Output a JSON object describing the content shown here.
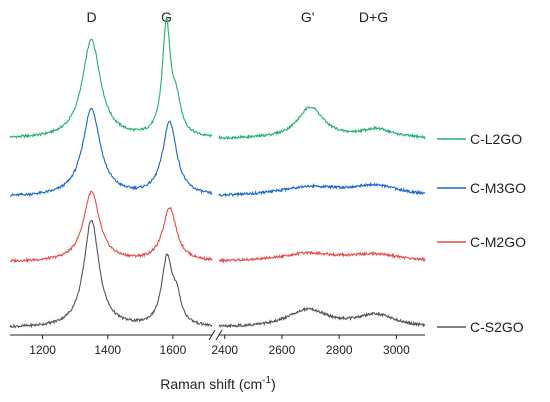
{
  "chart_data": {
    "type": "line",
    "xlabel": "Raman shift (cm",
    "xlabel_superscript": "-1",
    "xlabel_suffix": ")",
    "ylabel": "",
    "axis_break": [
      1720,
      2380
    ],
    "xlim_left": [
      1100,
      1720
    ],
    "xlim_right": [
      2380,
      3100
    ],
    "x_ticks": [
      {
        "value": 1200,
        "label": "1200"
      },
      {
        "value": 1400,
        "label": "1400"
      },
      {
        "value": 1600,
        "label": "1600"
      },
      {
        "value": 2400,
        "label": "2400"
      },
      {
        "value": 2600,
        "label": "2600"
      },
      {
        "value": 2800,
        "label": "2800"
      },
      {
        "value": 3000,
        "label": "3000"
      }
    ],
    "peak_labels": [
      {
        "label": "D",
        "x": 1350
      },
      {
        "label": "G",
        "x": 1580
      },
      {
        "label": "G'",
        "x": 2690
      },
      {
        "label": "D+G",
        "x": 2920
      }
    ],
    "legend_position": "right",
    "grid": false,
    "series": [
      {
        "name": "C-L2GO",
        "color": "#1fb371",
        "baseline": 0.0,
        "peaks": [
          {
            "center": 1350,
            "width": 34,
            "height": 0.88
          },
          {
            "center": 1580,
            "width": 15,
            "height": 0.98
          },
          {
            "center": 1610,
            "width": 18,
            "height": 0.28
          },
          {
            "center": 2700,
            "width": 55,
            "height": 0.28
          },
          {
            "center": 2930,
            "width": 70,
            "height": 0.08
          }
        ]
      },
      {
        "name": "C-M3GO",
        "color": "#1668c9",
        "baseline": 0.0,
        "peaks": [
          {
            "center": 1350,
            "width": 33,
            "height": 0.78
          },
          {
            "center": 1590,
            "width": 26,
            "height": 0.66
          },
          {
            "center": 2690,
            "width": 130,
            "height": 0.08
          },
          {
            "center": 2925,
            "width": 110,
            "height": 0.09
          }
        ]
      },
      {
        "name": "C-M2GO",
        "color": "#e84a4a",
        "baseline": 0.0,
        "peaks": [
          {
            "center": 1350,
            "width": 30,
            "height": 0.62
          },
          {
            "center": 1590,
            "width": 25,
            "height": 0.48
          },
          {
            "center": 2690,
            "width": 120,
            "height": 0.07
          },
          {
            "center": 2925,
            "width": 110,
            "height": 0.06
          }
        ]
      },
      {
        "name": "C-S2GO",
        "color": "#555555",
        "baseline": 0.0,
        "peaks": [
          {
            "center": 1350,
            "width": 28,
            "height": 0.96
          },
          {
            "center": 1582,
            "width": 20,
            "height": 0.6
          },
          {
            "center": 1612,
            "width": 16,
            "height": 0.2
          },
          {
            "center": 2690,
            "width": 85,
            "height": 0.16
          },
          {
            "center": 2930,
            "width": 80,
            "height": 0.11
          }
        ]
      }
    ]
  }
}
